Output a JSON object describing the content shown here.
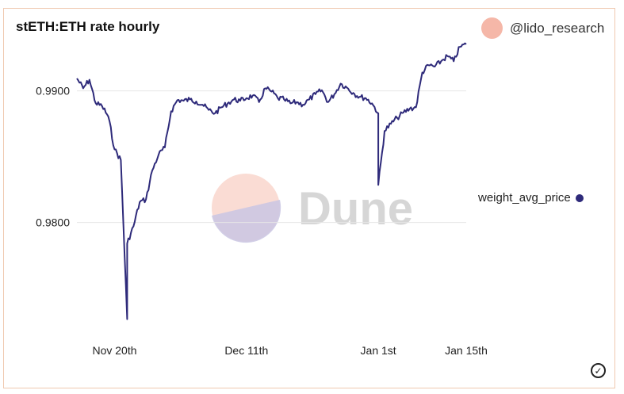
{
  "header": {
    "title": "stETH:ETH rate hourly",
    "author": "@lido_research",
    "author_icon": "avatar-circle",
    "author_color": "#f5b7a8"
  },
  "legend": {
    "series_label": "weight_avg_price",
    "color": "#2e2a7a"
  },
  "watermark": {
    "text": "Dune"
  },
  "status_icon": "check-circle-icon",
  "status_glyph": "✓",
  "chart_data": {
    "type": "line",
    "title": "stETH:ETH rate hourly",
    "xlabel": "",
    "ylabel": "",
    "x_ticks": [
      "Nov 20th",
      "Dec 11th",
      "Jan 1st",
      "Jan 15th"
    ],
    "y_ticks": [
      "0.9800",
      "0.9900"
    ],
    "ylim": [
      0.9713,
      0.9945
    ],
    "xlim": [
      "2022-11-14",
      "2023-01-15"
    ],
    "grid": true,
    "legend_position": "right",
    "color": "#2e2a7a",
    "series": [
      {
        "name": "weight_avg_price",
        "points": [
          [
            "2022-11-14",
            0.99095
          ],
          [
            "2022-11-15",
            0.9902
          ],
          [
            "2022-11-16",
            0.99085
          ],
          [
            "2022-11-17",
            0.98905
          ],
          [
            "2022-11-18",
            0.98885
          ],
          [
            "2022-11-19",
            0.98805
          ],
          [
            "2022-11-20",
            0.98555
          ],
          [
            "2022-11-21",
            0.98475
          ],
          [
            "2022-11-22",
            0.97265
          ],
          [
            "2022-11-22",
            0.9784
          ],
          [
            "2022-11-23",
            0.9797
          ],
          [
            "2022-11-24",
            0.98155
          ],
          [
            "2022-11-25",
            0.98175
          ],
          [
            "2022-11-26",
            0.98395
          ],
          [
            "2022-11-27",
            0.98515
          ],
          [
            "2022-11-28",
            0.9857
          ],
          [
            "2022-11-29",
            0.98845
          ],
          [
            "2022-11-30",
            0.9893
          ],
          [
            "2022-12-01",
            0.98925
          ],
          [
            "2022-12-02",
            0.98935
          ],
          [
            "2022-12-03",
            0.9892
          ],
          [
            "2022-12-04",
            0.98895
          ],
          [
            "2022-12-05",
            0.98855
          ],
          [
            "2022-12-06",
            0.9883
          ],
          [
            "2022-12-07",
            0.98875
          ],
          [
            "2022-12-08",
            0.98905
          ],
          [
            "2022-12-09",
            0.98935
          ],
          [
            "2022-12-10",
            0.98925
          ],
          [
            "2022-12-11",
            0.98945
          ],
          [
            "2022-12-12",
            0.98965
          ],
          [
            "2022-12-13",
            0.98915
          ],
          [
            "2022-12-14",
            0.9902
          ],
          [
            "2022-12-15",
            0.98995
          ],
          [
            "2022-12-16",
            0.98945
          ],
          [
            "2022-12-17",
            0.98935
          ],
          [
            "2022-12-18",
            0.98905
          ],
          [
            "2022-12-19",
            0.98915
          ],
          [
            "2022-12-20",
            0.98895
          ],
          [
            "2022-12-21",
            0.98935
          ],
          [
            "2022-12-22",
            0.98975
          ],
          [
            "2022-12-23",
            0.99005
          ],
          [
            "2022-12-24",
            0.98915
          ],
          [
            "2022-12-25",
            0.98975
          ],
          [
            "2022-12-26",
            0.99055
          ],
          [
            "2022-12-27",
            0.99025
          ],
          [
            "2022-12-28",
            0.98985
          ],
          [
            "2022-12-29",
            0.98955
          ],
          [
            "2022-12-30",
            0.98945
          ],
          [
            "2022-12-31",
            0.98905
          ],
          [
            "2023-01-01",
            0.9883
          ],
          [
            "2023-01-01",
            0.98285
          ],
          [
            "2023-01-02",
            0.98695
          ],
          [
            "2023-01-03",
            0.9875
          ],
          [
            "2023-01-04",
            0.98795
          ],
          [
            "2023-01-05",
            0.98835
          ],
          [
            "2023-01-06",
            0.98865
          ],
          [
            "2023-01-07",
            0.98875
          ],
          [
            "2023-01-08",
            0.9914
          ],
          [
            "2023-01-09",
            0.99195
          ],
          [
            "2023-01-10",
            0.99185
          ],
          [
            "2023-01-11",
            0.99225
          ],
          [
            "2023-01-12",
            0.99265
          ],
          [
            "2023-01-13",
            0.99225
          ],
          [
            "2023-01-14",
            0.99335
          ],
          [
            "2023-01-15",
            0.99355
          ]
        ]
      }
    ]
  }
}
